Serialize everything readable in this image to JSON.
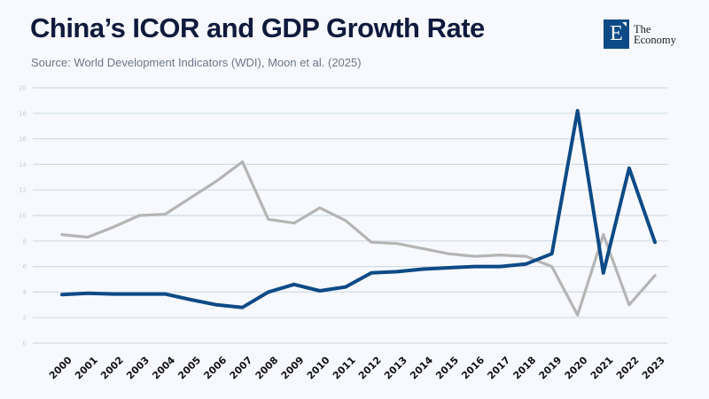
{
  "header": {
    "title": "China’s ICOR and GDP Growth Rate",
    "subtitle": "Source: World Development Indicators (WDI), Moon et al. (2025)"
  },
  "logo": {
    "mark": "E",
    "line1": "The",
    "line2": "Economy",
    "color": "#0d4a86"
  },
  "chart_data": {
    "type": "line",
    "title": "China’s ICOR and GDP Growth Rate",
    "xlabel": "",
    "ylabel": "",
    "ylim": [
      0,
      20
    ],
    "yticks": [
      0,
      2,
      4,
      6,
      8,
      10,
      12,
      14,
      16,
      18,
      20
    ],
    "grid": true,
    "legend": "none",
    "x": [
      "2000",
      "2001",
      "2002",
      "2003",
      "2004",
      "2005",
      "2006",
      "2007",
      "2008",
      "2009",
      "2010",
      "2011",
      "2012",
      "2013",
      "2014",
      "2015",
      "2016",
      "2017",
      "2018",
      "2019",
      "2020",
      "2021",
      "2022",
      "2023"
    ],
    "series": [
      {
        "name": "GDP Growth Rate",
        "color": "#b5b5b5",
        "values": [
          8.5,
          8.3,
          9.1,
          10.0,
          10.1,
          11.4,
          12.7,
          14.2,
          9.7,
          9.4,
          10.6,
          9.6,
          7.9,
          7.8,
          7.4,
          7.0,
          6.8,
          6.9,
          6.8,
          6.0,
          2.2,
          8.5,
          3.0,
          5.3
        ]
      },
      {
        "name": "ICOR",
        "color": "#0d4a86",
        "values": [
          3.8,
          3.9,
          3.85,
          3.85,
          3.85,
          3.4,
          3.0,
          2.8,
          4.0,
          4.6,
          4.1,
          4.4,
          5.5,
          5.6,
          5.8,
          5.9,
          6.0,
          6.0,
          6.2,
          7.0,
          18.2,
          5.5,
          13.7,
          7.9
        ]
      }
    ]
  }
}
